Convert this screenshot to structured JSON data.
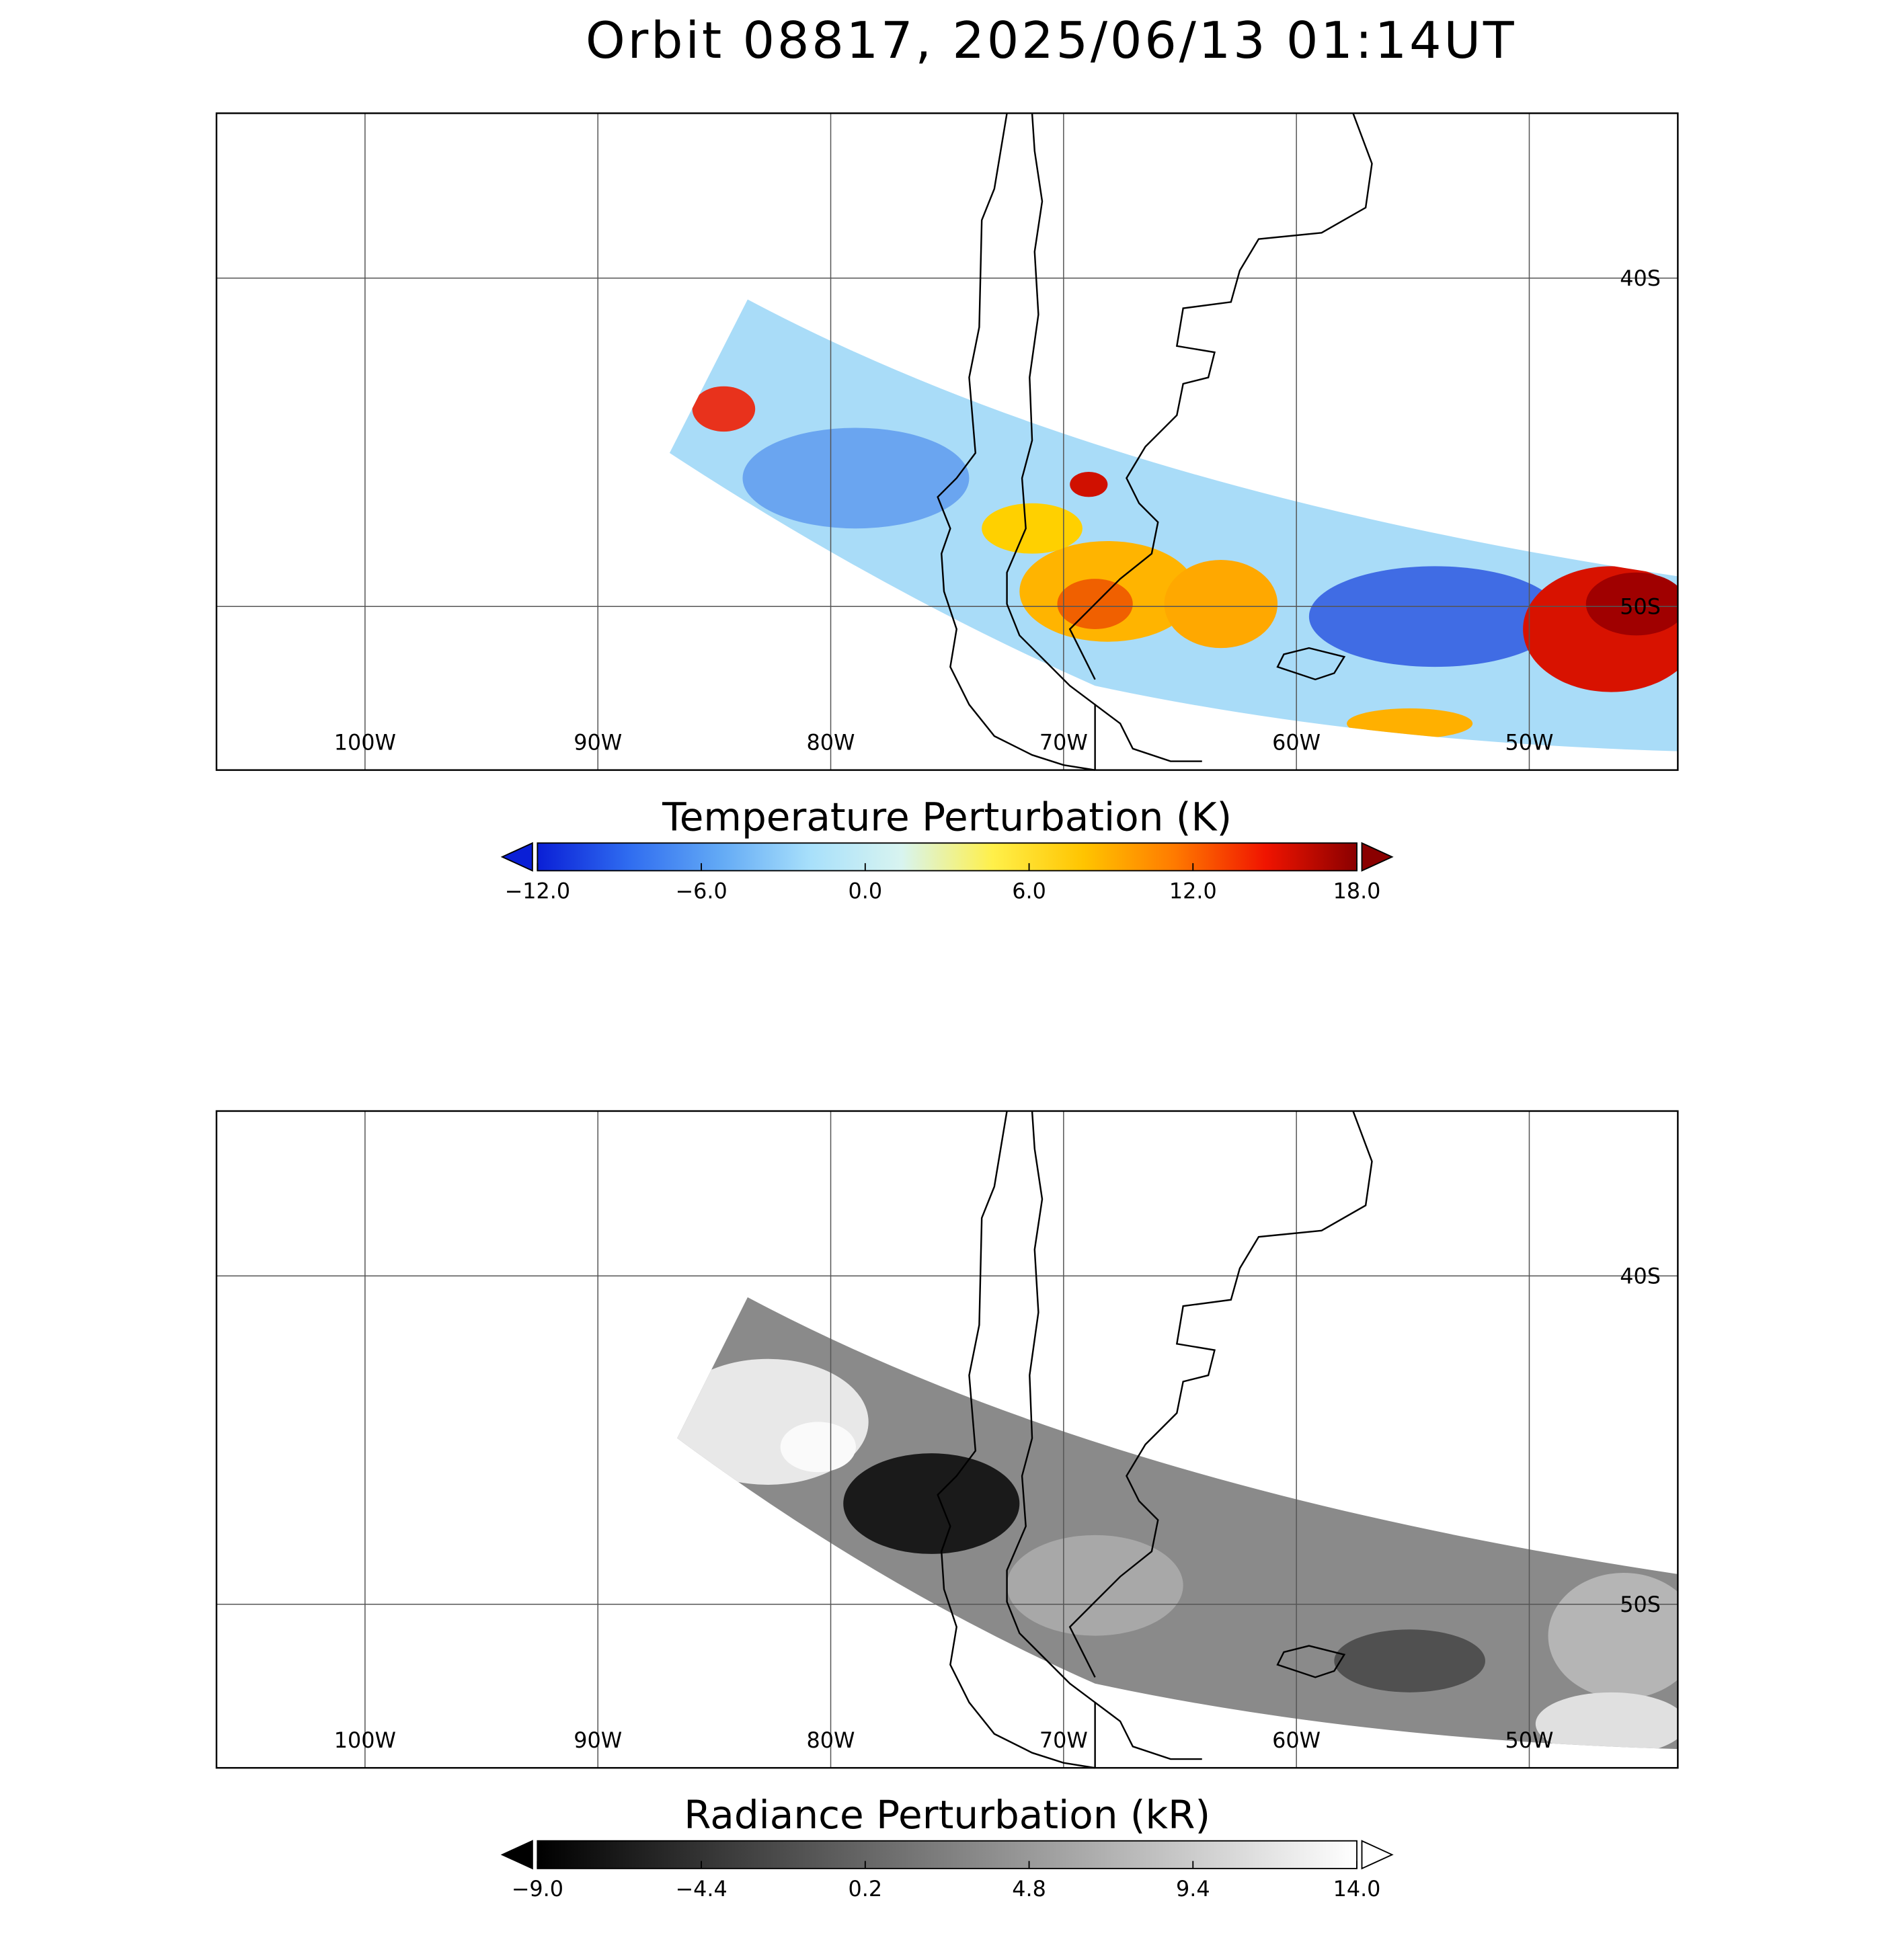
{
  "title": "Orbit 08817, 2025/06/13 01:14UT",
  "panels": [
    {
      "lon_labels": [
        "100W",
        "90W",
        "80W",
        "70W",
        "60W",
        "50W"
      ],
      "lat_labels": [
        "40S",
        "50S"
      ],
      "colorbar": {
        "label": "Temperature Perturbation (K)",
        "range": [
          -12,
          18
        ],
        "ticks": [
          {
            "value": -12,
            "label": "−12.0"
          },
          {
            "value": -6,
            "label": "−6.0"
          },
          {
            "value": 0,
            "label": "0.0"
          },
          {
            "value": 6,
            "label": "6.0"
          },
          {
            "value": 12,
            "label": "12.0"
          },
          {
            "value": 18,
            "label": "18.0"
          }
        ],
        "colors": [
          "#0a1fd6",
          "#2f6cf0",
          "#62a9f5",
          "#a8e0fb",
          "#d8f4f0",
          "#fff04a",
          "#ffc400",
          "#ff7a00",
          "#f01400",
          "#8a0000"
        ],
        "under_color": "#0a1fd6",
        "over_color": "#8a0000"
      }
    },
    {
      "lon_labels": [
        "100W",
        "90W",
        "80W",
        "70W",
        "60W",
        "50W"
      ],
      "lat_labels": [
        "40S",
        "50S"
      ],
      "colorbar": {
        "label": "Radiance Perturbation (kR)",
        "range": [
          -9,
          14
        ],
        "ticks": [
          {
            "value": -9,
            "label": "−9.0"
          },
          {
            "value": -4.4,
            "label": "−4.4"
          },
          {
            "value": 0.2,
            "label": "0.2"
          },
          {
            "value": 4.8,
            "label": "4.8"
          },
          {
            "value": 9.4,
            "label": "9.4"
          },
          {
            "value": 14,
            "label": "14.0"
          }
        ],
        "colors": [
          "#000000",
          "#ffffff"
        ],
        "under_color": "#000000",
        "over_color": "#ffffff"
      }
    }
  ]
}
